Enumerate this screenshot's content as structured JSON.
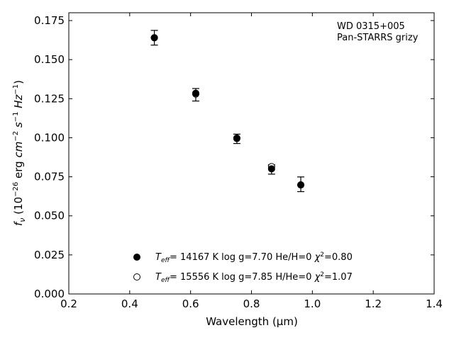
{
  "chart_data": {
    "type": "scatter",
    "xlabel": "Wavelength (μm)",
    "ylabel": {
      "base": "f",
      "sub": "ν",
      "open": " (10",
      "exp1": "−26",
      "mid1": " erg ",
      "cm": "cm",
      "exp2": "−2",
      "s": "s",
      "exp3": "−1",
      "hz": "Hz",
      "exp4": "−1",
      "close": ")"
    },
    "xlim": [
      0.2,
      1.4
    ],
    "ylim": [
      0.0,
      0.18
    ],
    "xticks": [
      "0.2",
      "0.4",
      "0.6",
      "0.8",
      "1.0",
      "1.2",
      "1.4"
    ],
    "xtick_values": [
      0.2,
      0.4,
      0.6,
      0.8,
      1.0,
      1.2,
      1.4
    ],
    "yticks": [
      "0.000",
      "0.025",
      "0.050",
      "0.075",
      "0.100",
      "0.125",
      "0.150",
      "0.175"
    ],
    "ytick_values": [
      0.0,
      0.025,
      0.05,
      0.075,
      0.1,
      0.125,
      0.15,
      0.175
    ],
    "grid": false,
    "annotation": [
      "WD 0315+005",
      "Pan-STARRS grizy"
    ],
    "observed": {
      "x": [
        0.481,
        0.617,
        0.752,
        0.866,
        0.962
      ],
      "y": [
        0.164,
        0.1275,
        0.0993,
        0.0797,
        0.0702
      ],
      "yerr": [
        0.0047,
        0.004,
        0.003,
        0.003,
        0.0047
      ]
    },
    "series": [
      {
        "marker": "filled",
        "x": [
          0.481,
          0.617,
          0.752,
          0.866,
          0.962
        ],
        "y": [
          0.164,
          0.1285,
          0.0995,
          0.0801,
          0.0698
        ],
        "label": {
          "teff_sym": "T",
          "teff_sub": "eff",
          "rest1": "= 14167 K  log g=7.70  He/H=0  ",
          "chi": "χ",
          "chi_exp": "2",
          "rest2": "=0.80"
        }
      },
      {
        "marker": "open",
        "x": [
          0.481,
          0.617,
          0.752,
          0.866,
          0.962
        ],
        "y": [
          0.164,
          0.128,
          0.0998,
          0.0815,
          0.0698
        ],
        "label": {
          "teff_sym": "T",
          "teff_sub": "eff",
          "rest1": "= 15556 K  log g=7.85  H/He=0  ",
          "chi": "χ",
          "chi_exp": "2",
          "rest2": "=1.07"
        }
      }
    ],
    "legend_position": "lower-center",
    "colors": {
      "marker": "#000000",
      "axis": "#000000",
      "background": "#ffffff"
    }
  }
}
